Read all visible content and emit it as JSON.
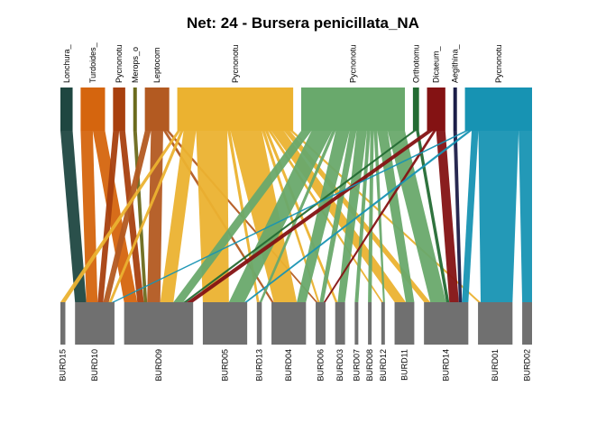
{
  "chart_data": {
    "type": "bipartite",
    "title": "Net: 24 - Bursera penicillata_NA",
    "top_nodes": [
      {
        "label": "Lonchura_",
        "color": "#1F4741",
        "weight": 2
      },
      {
        "label": "Turdoides_",
        "color": "#D5650E",
        "weight": 4
      },
      {
        "label": "Pycnonotu",
        "color": "#A8400F",
        "weight": 2
      },
      {
        "label": "Merops_o",
        "color": "#6B6A1C",
        "weight": 0.5
      },
      {
        "label": "Leptocom",
        "color": "#B35A21",
        "weight": 4
      },
      {
        "label": "Pycnonotu",
        "color": "#EBB230",
        "weight": 19
      },
      {
        "label": "Pycnonotu",
        "color": "#69A96C",
        "weight": 17
      },
      {
        "label": "Orthotomu",
        "color": "#246C34",
        "weight": 1
      },
      {
        "label": "Dicaeum_",
        "color": "#841213",
        "weight": 3
      },
      {
        "label": "Aegithina_",
        "color": "#1C1E48",
        "weight": 0.5
      },
      {
        "label": "Pycnonotu",
        "color": "#1793B3",
        "weight": 11
      }
    ],
    "bottom_nodes": [
      {
        "label": "BURD15",
        "weight": 1
      },
      {
        "label": "BURD10",
        "weight": 8
      },
      {
        "label": "BURD09",
        "weight": 14
      },
      {
        "label": "BURD05",
        "weight": 9
      },
      {
        "label": "BURD13",
        "weight": 1
      },
      {
        "label": "BURD04",
        "weight": 7
      },
      {
        "label": "BURD06",
        "weight": 2
      },
      {
        "label": "BURD03",
        "weight": 2
      },
      {
        "label": "BURD07",
        "weight": 0.5
      },
      {
        "label": "BURD08",
        "weight": 0.5
      },
      {
        "label": "BURD12",
        "weight": 0.5
      },
      {
        "label": "BURD11",
        "weight": 4
      },
      {
        "label": "BURD14",
        "weight": 9
      },
      {
        "label": "BURD01",
        "weight": 7
      },
      {
        "label": "BURD02",
        "weight": 2
      }
    ],
    "links": [
      [
        0,
        1,
        2
      ],
      [
        1,
        1,
        2
      ],
      [
        1,
        2,
        2
      ],
      [
        2,
        1,
        1
      ],
      [
        2,
        2,
        1
      ],
      [
        3,
        2,
        0.5
      ],
      [
        4,
        2,
        2
      ],
      [
        4,
        6,
        0.5
      ],
      [
        4,
        5,
        0.5
      ],
      [
        4,
        1,
        1
      ],
      [
        5,
        0,
        0.5
      ],
      [
        5,
        1,
        0.5
      ],
      [
        5,
        2,
        2
      ],
      [
        5,
        3,
        5
      ],
      [
        5,
        5,
        5
      ],
      [
        5,
        4,
        0.5
      ],
      [
        5,
        6,
        0.5
      ],
      [
        5,
        11,
        2
      ],
      [
        5,
        12,
        1
      ],
      [
        5,
        10,
        0.5
      ],
      [
        5,
        7,
        0.5
      ],
      [
        5,
        13,
        0.5
      ],
      [
        6,
        2,
        1.5
      ],
      [
        6,
        3,
        3
      ],
      [
        6,
        4,
        0.5
      ],
      [
        6,
        5,
        2
      ],
      [
        6,
        6,
        1
      ],
      [
        6,
        7,
        1.5
      ],
      [
        6,
        8,
        0.5
      ],
      [
        6,
        9,
        0.5
      ],
      [
        6,
        10,
        0.5
      ],
      [
        6,
        11,
        1.5
      ],
      [
        6,
        12,
        2.5
      ],
      [
        7,
        2,
        0.5
      ],
      [
        7,
        12,
        0.5
      ],
      [
        8,
        2,
        1
      ],
      [
        8,
        6,
        0.5
      ],
      [
        8,
        12,
        1.5
      ],
      [
        9,
        12,
        0.5
      ],
      [
        10,
        1,
        0.5
      ],
      [
        10,
        3,
        0.5
      ],
      [
        10,
        12,
        1
      ],
      [
        10,
        13,
        6
      ],
      [
        10,
        14,
        2
      ]
    ]
  }
}
